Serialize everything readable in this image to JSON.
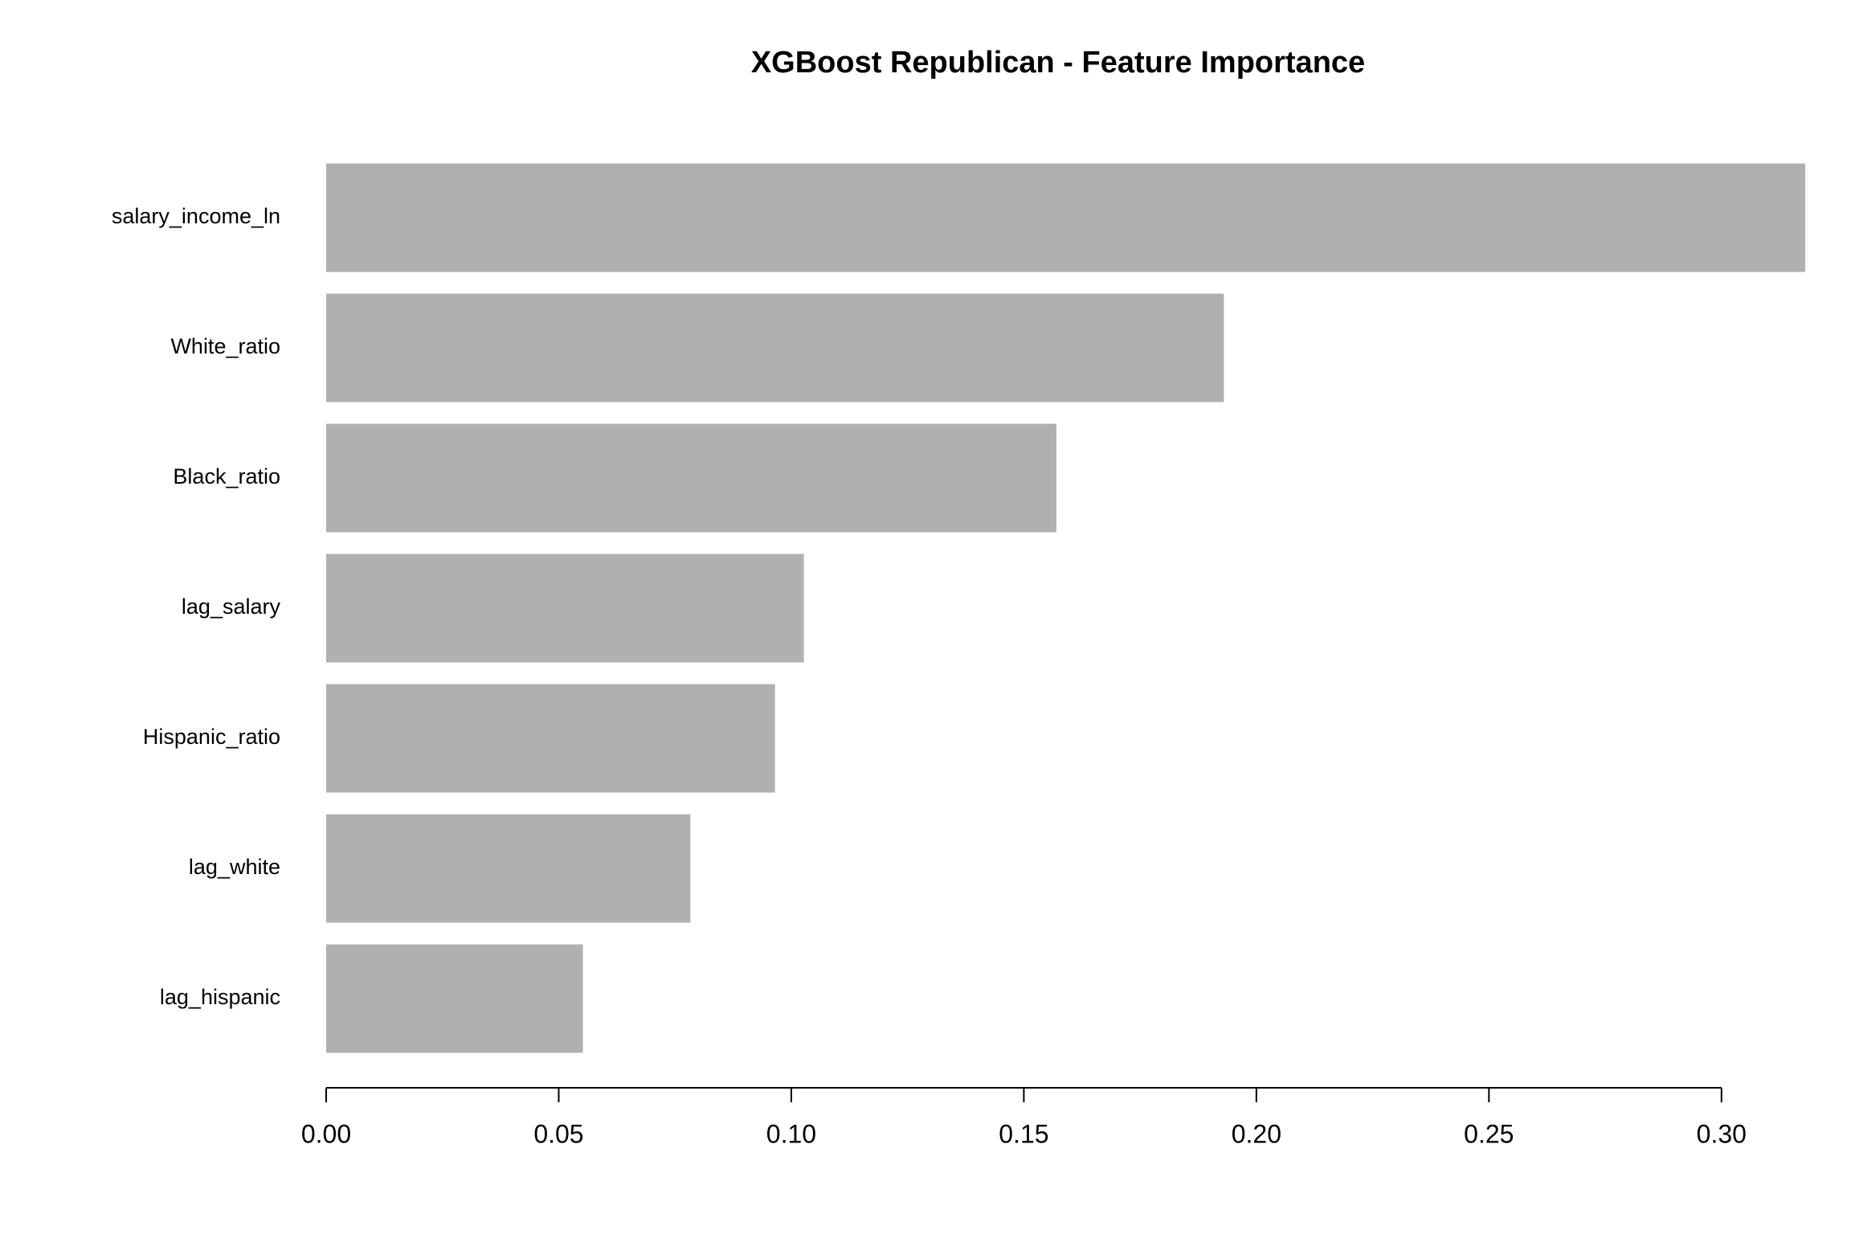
{
  "chart_data": {
    "type": "barh",
    "title": "XGBoost Republican - Feature Importance",
    "categories": [
      "salary_income_ln",
      "White_ratio",
      "Black_ratio",
      "lag_salary",
      "Hispanic_ratio",
      "lag_white",
      "lag_hispanic"
    ],
    "values": [
      0.318,
      0.193,
      0.157,
      0.1027,
      0.0965,
      0.0783,
      0.0552
    ],
    "color": "#b0b0b0",
    "xlim": [
      0,
      0.318
    ],
    "xticks": [
      {
        "value": 0,
        "label": "0.00"
      },
      {
        "value": 0.05,
        "label": "0.05"
      },
      {
        "value": 0.1,
        "label": "0.10"
      },
      {
        "value": 0.15,
        "label": "0.15"
      },
      {
        "value": 0.2,
        "label": "0.20"
      },
      {
        "value": 0.25,
        "label": "0.25"
      },
      {
        "value": 0.3,
        "label": "0.30"
      }
    ],
    "grid": false
  }
}
